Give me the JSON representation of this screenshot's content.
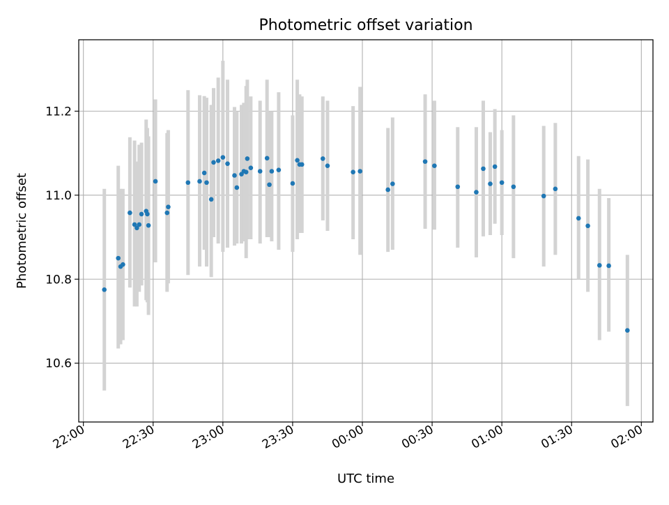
{
  "chart_data": {
    "type": "scatter",
    "title": "Photometric offset variation",
    "xlabel": "UTC time",
    "ylabel": "Photometric offset",
    "x_tick_labels": [
      "22:00",
      "22:30",
      "23:00",
      "23:30",
      "00:00",
      "00:30",
      "01:00",
      "01:30",
      "02:00"
    ],
    "y_ticks": [
      10.6,
      10.8,
      11.0,
      11.2
    ],
    "y_tick_labels": [
      "10.6",
      "10.8",
      "11.0",
      "11.2"
    ],
    "xlim": [
      "21:58",
      "02:05"
    ],
    "ylim": [
      10.46,
      11.37
    ],
    "grid": true,
    "point_color": "#1f77b4",
    "errorbar_color": "#d3d3d3",
    "points": [
      {
        "t": "22:09",
        "y": 10.775,
        "lo": 10.535,
        "hi": 11.015
      },
      {
        "t": "22:15",
        "y": 10.85,
        "lo": 10.635,
        "hi": 11.07
      },
      {
        "t": "22:16",
        "y": 10.83,
        "lo": 10.645,
        "hi": 11.015
      },
      {
        "t": "22:17",
        "y": 10.835,
        "lo": 10.655,
        "hi": 11.015
      },
      {
        "t": "22:20",
        "y": 10.958,
        "lo": 10.78,
        "hi": 11.138
      },
      {
        "t": "22:22",
        "y": 10.93,
        "lo": 10.735,
        "hi": 11.13
      },
      {
        "t": "22:23",
        "y": 10.922,
        "lo": 10.735,
        "hi": 11.08
      },
      {
        "t": "22:24",
        "y": 10.93,
        "lo": 10.77,
        "hi": 11.12
      },
      {
        "t": "22:25",
        "y": 10.955,
        "lo": 10.785,
        "hi": 11.125
      },
      {
        "t": "22:27",
        "y": 10.962,
        "lo": 10.75,
        "hi": 11.18
      },
      {
        "t": "22:28",
        "y": 10.928,
        "lo": 10.715,
        "hi": 11.14
      },
      {
        "t": "22:27:30",
        "y": 10.955,
        "lo": 10.745,
        "hi": 11.16
      },
      {
        "t": "22:31",
        "y": 11.033,
        "lo": 10.84,
        "hi": 11.228
      },
      {
        "t": "22:36",
        "y": 10.958,
        "lo": 10.77,
        "hi": 11.148
      },
      {
        "t": "22:36:30",
        "y": 10.972,
        "lo": 10.79,
        "hi": 11.155
      },
      {
        "t": "22:45",
        "y": 11.03,
        "lo": 10.81,
        "hi": 11.25
      },
      {
        "t": "22:50",
        "y": 11.033,
        "lo": 10.83,
        "hi": 11.238
      },
      {
        "t": "22:52",
        "y": 11.053,
        "lo": 10.87,
        "hi": 11.236
      },
      {
        "t": "22:53",
        "y": 11.03,
        "lo": 10.83,
        "hi": 11.232
      },
      {
        "t": "22:55",
        "y": 10.99,
        "lo": 10.805,
        "hi": 11.215
      },
      {
        "t": "22:56",
        "y": 11.078,
        "lo": 10.9,
        "hi": 11.255
      },
      {
        "t": "22:58",
        "y": 11.082,
        "lo": 10.885,
        "hi": 11.28
      },
      {
        "t": "23:00",
        "y": 11.09,
        "lo": 10.865,
        "hi": 11.32
      },
      {
        "t": "23:02",
        "y": 11.075,
        "lo": 10.875,
        "hi": 11.275
      },
      {
        "t": "23:05",
        "y": 11.047,
        "lo": 10.88,
        "hi": 11.21
      },
      {
        "t": "23:06",
        "y": 11.018,
        "lo": 10.885,
        "hi": 11.2
      },
      {
        "t": "23:08",
        "y": 11.05,
        "lo": 10.885,
        "hi": 11.215
      },
      {
        "t": "23:09",
        "y": 11.057,
        "lo": 10.89,
        "hi": 11.22
      },
      {
        "t": "23:10",
        "y": 11.055,
        "lo": 10.85,
        "hi": 11.26
      },
      {
        "t": "23:10:30",
        "y": 11.087,
        "lo": 10.895,
        "hi": 11.275
      },
      {
        "t": "23:12",
        "y": 11.065,
        "lo": 10.895,
        "hi": 11.235
      },
      {
        "t": "23:16",
        "y": 11.057,
        "lo": 10.885,
        "hi": 11.225
      },
      {
        "t": "23:19",
        "y": 11.088,
        "lo": 10.9,
        "hi": 11.275
      },
      {
        "t": "23:20",
        "y": 11.025,
        "lo": 10.9,
        "hi": 11.2
      },
      {
        "t": "23:21",
        "y": 11.057,
        "lo": 10.89,
        "hi": 11.2
      },
      {
        "t": "23:24",
        "y": 11.06,
        "lo": 10.87,
        "hi": 11.245
      },
      {
        "t": "23:30",
        "y": 11.028,
        "lo": 10.865,
        "hi": 11.19
      },
      {
        "t": "23:32",
        "y": 11.083,
        "lo": 10.895,
        "hi": 11.275
      },
      {
        "t": "23:33",
        "y": 11.073,
        "lo": 10.91,
        "hi": 11.24
      },
      {
        "t": "23:34",
        "y": 11.073,
        "lo": 10.91,
        "hi": 11.235
      },
      {
        "t": "23:43",
        "y": 11.087,
        "lo": 10.94,
        "hi": 11.235
      },
      {
        "t": "23:45",
        "y": 11.07,
        "lo": 10.915,
        "hi": 11.225
      },
      {
        "t": "23:56",
        "y": 11.055,
        "lo": 10.895,
        "hi": 11.212
      },
      {
        "t": "23:59",
        "y": 11.057,
        "lo": 10.858,
        "hi": 11.258
      },
      {
        "t": "00:11",
        "y": 11.013,
        "lo": 10.865,
        "hi": 11.16
      },
      {
        "t": "00:13",
        "y": 11.027,
        "lo": 10.87,
        "hi": 11.185
      },
      {
        "t": "00:27",
        "y": 11.08,
        "lo": 10.92,
        "hi": 11.24
      },
      {
        "t": "00:31",
        "y": 11.07,
        "lo": 10.918,
        "hi": 11.225
      },
      {
        "t": "00:41",
        "y": 11.02,
        "lo": 10.875,
        "hi": 11.162
      },
      {
        "t": "00:49",
        "y": 11.007,
        "lo": 10.852,
        "hi": 11.162
      },
      {
        "t": "00:52",
        "y": 11.063,
        "lo": 10.902,
        "hi": 11.225
      },
      {
        "t": "00:55",
        "y": 11.027,
        "lo": 10.905,
        "hi": 11.15
      },
      {
        "t": "00:57",
        "y": 11.068,
        "lo": 10.932,
        "hi": 11.205
      },
      {
        "t": "01:00",
        "y": 11.03,
        "lo": 10.905,
        "hi": 11.155
      },
      {
        "t": "01:05",
        "y": 11.02,
        "lo": 10.85,
        "hi": 11.19
      },
      {
        "t": "01:18",
        "y": 10.998,
        "lo": 10.83,
        "hi": 11.165
      },
      {
        "t": "01:23",
        "y": 11.015,
        "lo": 10.858,
        "hi": 11.172
      },
      {
        "t": "01:33",
        "y": 10.945,
        "lo": 10.8,
        "hi": 11.093
      },
      {
        "t": "01:37",
        "y": 10.927,
        "lo": 10.77,
        "hi": 11.085
      },
      {
        "t": "01:42",
        "y": 10.833,
        "lo": 10.655,
        "hi": 11.015
      },
      {
        "t": "01:46",
        "y": 10.832,
        "lo": 10.675,
        "hi": 10.993
      },
      {
        "t": "01:54",
        "y": 10.678,
        "lo": 10.498,
        "hi": 10.858
      }
    ]
  }
}
